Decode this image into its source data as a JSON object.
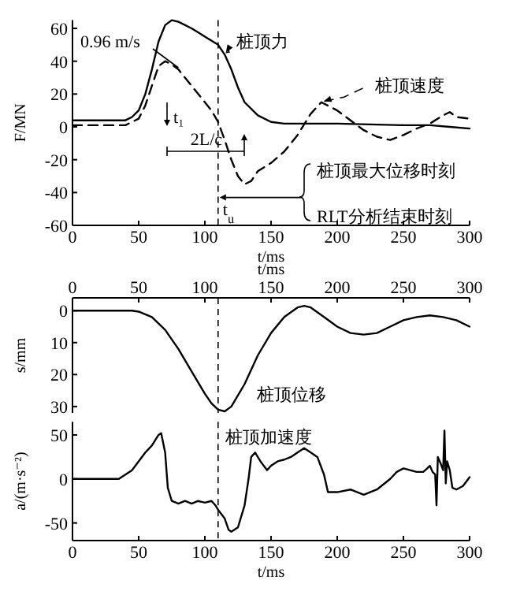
{
  "chart_data": [
    {
      "type": "line",
      "legend": "top right",
      "xlabel": "t/ms",
      "ylabel": "F/MN",
      "xlim": [
        0,
        300
      ],
      "xticks": [
        0,
        50,
        100,
        150,
        200,
        250,
        300
      ],
      "ylim": [
        -60,
        65
      ],
      "yticks": [
        -60,
        -40,
        -20,
        0,
        20,
        40,
        60
      ],
      "series": [
        {
          "name": "桩顶力",
          "color": "#000000",
          "line_style": "solid",
          "x": [
            0,
            40,
            45,
            50,
            55,
            60,
            65,
            70,
            75,
            80,
            90,
            100,
            110,
            115,
            120,
            125,
            130,
            140,
            150,
            160,
            200,
            250,
            270,
            285,
            300
          ],
          "values": [
            4,
            4,
            6,
            10,
            20,
            35,
            52,
            62,
            65,
            64,
            60,
            55,
            50,
            44,
            35,
            24,
            15,
            7,
            3,
            2,
            2,
            1,
            1,
            0,
            -1
          ]
        },
        {
          "name": "桩顶速度",
          "color": "#000000",
          "line_style": "dashed",
          "x": [
            0,
            40,
            45,
            50,
            55,
            60,
            65,
            70,
            75,
            80,
            90,
            100,
            105,
            110,
            115,
            120,
            125,
            130,
            135,
            140,
            150,
            160,
            170,
            180,
            188,
            200,
            210,
            220,
            230,
            240,
            250,
            260,
            270,
            280,
            285,
            290,
            300
          ],
          "values": [
            1,
            1,
            3,
            5,
            13,
            25,
            37,
            40,
            38,
            35,
            25,
            15,
            10,
            3,
            -8,
            -20,
            -30,
            -35,
            -33,
            -27,
            -22,
            -15,
            -5,
            8,
            15,
            10,
            4,
            -2,
            -6,
            -8,
            -5,
            -1,
            2,
            7,
            9,
            6,
            5
          ]
        }
      ],
      "ref_lines": [
        {
          "axis": "x",
          "value": 110,
          "line_style": "dashed"
        }
      ],
      "annotations": [
        {
          "text": "0.96 m/s",
          "x": 80,
          "y": 36
        },
        "t₁",
        "2L/c",
        {
          "text": "t$_{u}$",
          "x": 110,
          "y": -43
        },
        "桩顶最大位移时刻",
        "RLT分析结束时刻"
      ]
    },
    {
      "type": "line",
      "xlabel": "t/ms",
      "ylabel": "s/mm",
      "xlim": [
        0,
        300
      ],
      "xticks": [
        0,
        50,
        100,
        150,
        200,
        250,
        300
      ],
      "ylim": [
        32,
        -4
      ],
      "yticks": [
        0,
        10,
        20,
        30
      ],
      "series": [
        {
          "name": "桩顶位移",
          "color": "#000000",
          "line_style": "solid",
          "x": [
            0,
            45,
            50,
            60,
            70,
            80,
            90,
            100,
            105,
            110,
            115,
            120,
            130,
            140,
            150,
            160,
            170,
            175,
            180,
            190,
            200,
            210,
            220,
            230,
            240,
            250,
            260,
            270,
            280,
            290,
            300
          ],
          "values": [
            0,
            0,
            0.3,
            2,
            6,
            12,
            19,
            26,
            29,
            31,
            31.5,
            30,
            23,
            14,
            7,
            2,
            -1,
            -1.5,
            -1,
            2,
            5,
            7,
            7.5,
            7,
            5,
            3,
            2,
            1.5,
            2,
            3,
            5
          ]
        }
      ],
      "ref_lines": [
        {
          "axis": "x",
          "value": 110,
          "line_style": "dashed"
        }
      ]
    },
    {
      "type": "line",
      "xlabel": "t/ms",
      "ylabel": "a/(m·s⁻²)",
      "xlim": [
        0,
        300
      ],
      "xticks": [
        0,
        50,
        100,
        150,
        200,
        250,
        300
      ],
      "ylim": [
        -70,
        65
      ],
      "yticks": [
        -50,
        0,
        50
      ],
      "series": [
        {
          "name": "桩顶加速度",
          "color": "#000000",
          "line_style": "solid",
          "x": [
            0,
            35,
            40,
            45,
            50,
            55,
            60,
            65,
            67,
            70,
            72,
            75,
            80,
            85,
            90,
            95,
            100,
            105,
            108,
            110,
            115,
            118,
            120,
            125,
            130,
            133,
            135,
            138,
            142,
            147,
            150,
            155,
            160,
            165,
            170,
            175,
            180,
            185,
            190,
            193,
            200,
            210,
            220,
            230,
            240,
            245,
            250,
            260,
            265,
            268,
            270,
            272,
            274,
            275,
            276,
            278,
            280,
            281,
            282,
            283,
            285,
            287,
            290,
            295,
            300
          ],
          "values": [
            0,
            0,
            5,
            10,
            20,
            30,
            38,
            50,
            52,
            30,
            -10,
            -25,
            -28,
            -25,
            -28,
            -25,
            -27,
            -25,
            -30,
            -35,
            -45,
            -58,
            -60,
            -55,
            -30,
            0,
            25,
            30,
            20,
            10,
            15,
            20,
            22,
            25,
            30,
            35,
            30,
            25,
            5,
            -15,
            -15,
            -12,
            -18,
            -12,
            0,
            8,
            12,
            8,
            8,
            12,
            15,
            8,
            5,
            -30,
            25,
            18,
            10,
            55,
            -5,
            20,
            10,
            -10,
            -12,
            -8,
            2
          ]
        }
      ],
      "ref_lines": [
        {
          "axis": "x",
          "value": 110,
          "line_style": "dashed"
        }
      ]
    }
  ]
}
